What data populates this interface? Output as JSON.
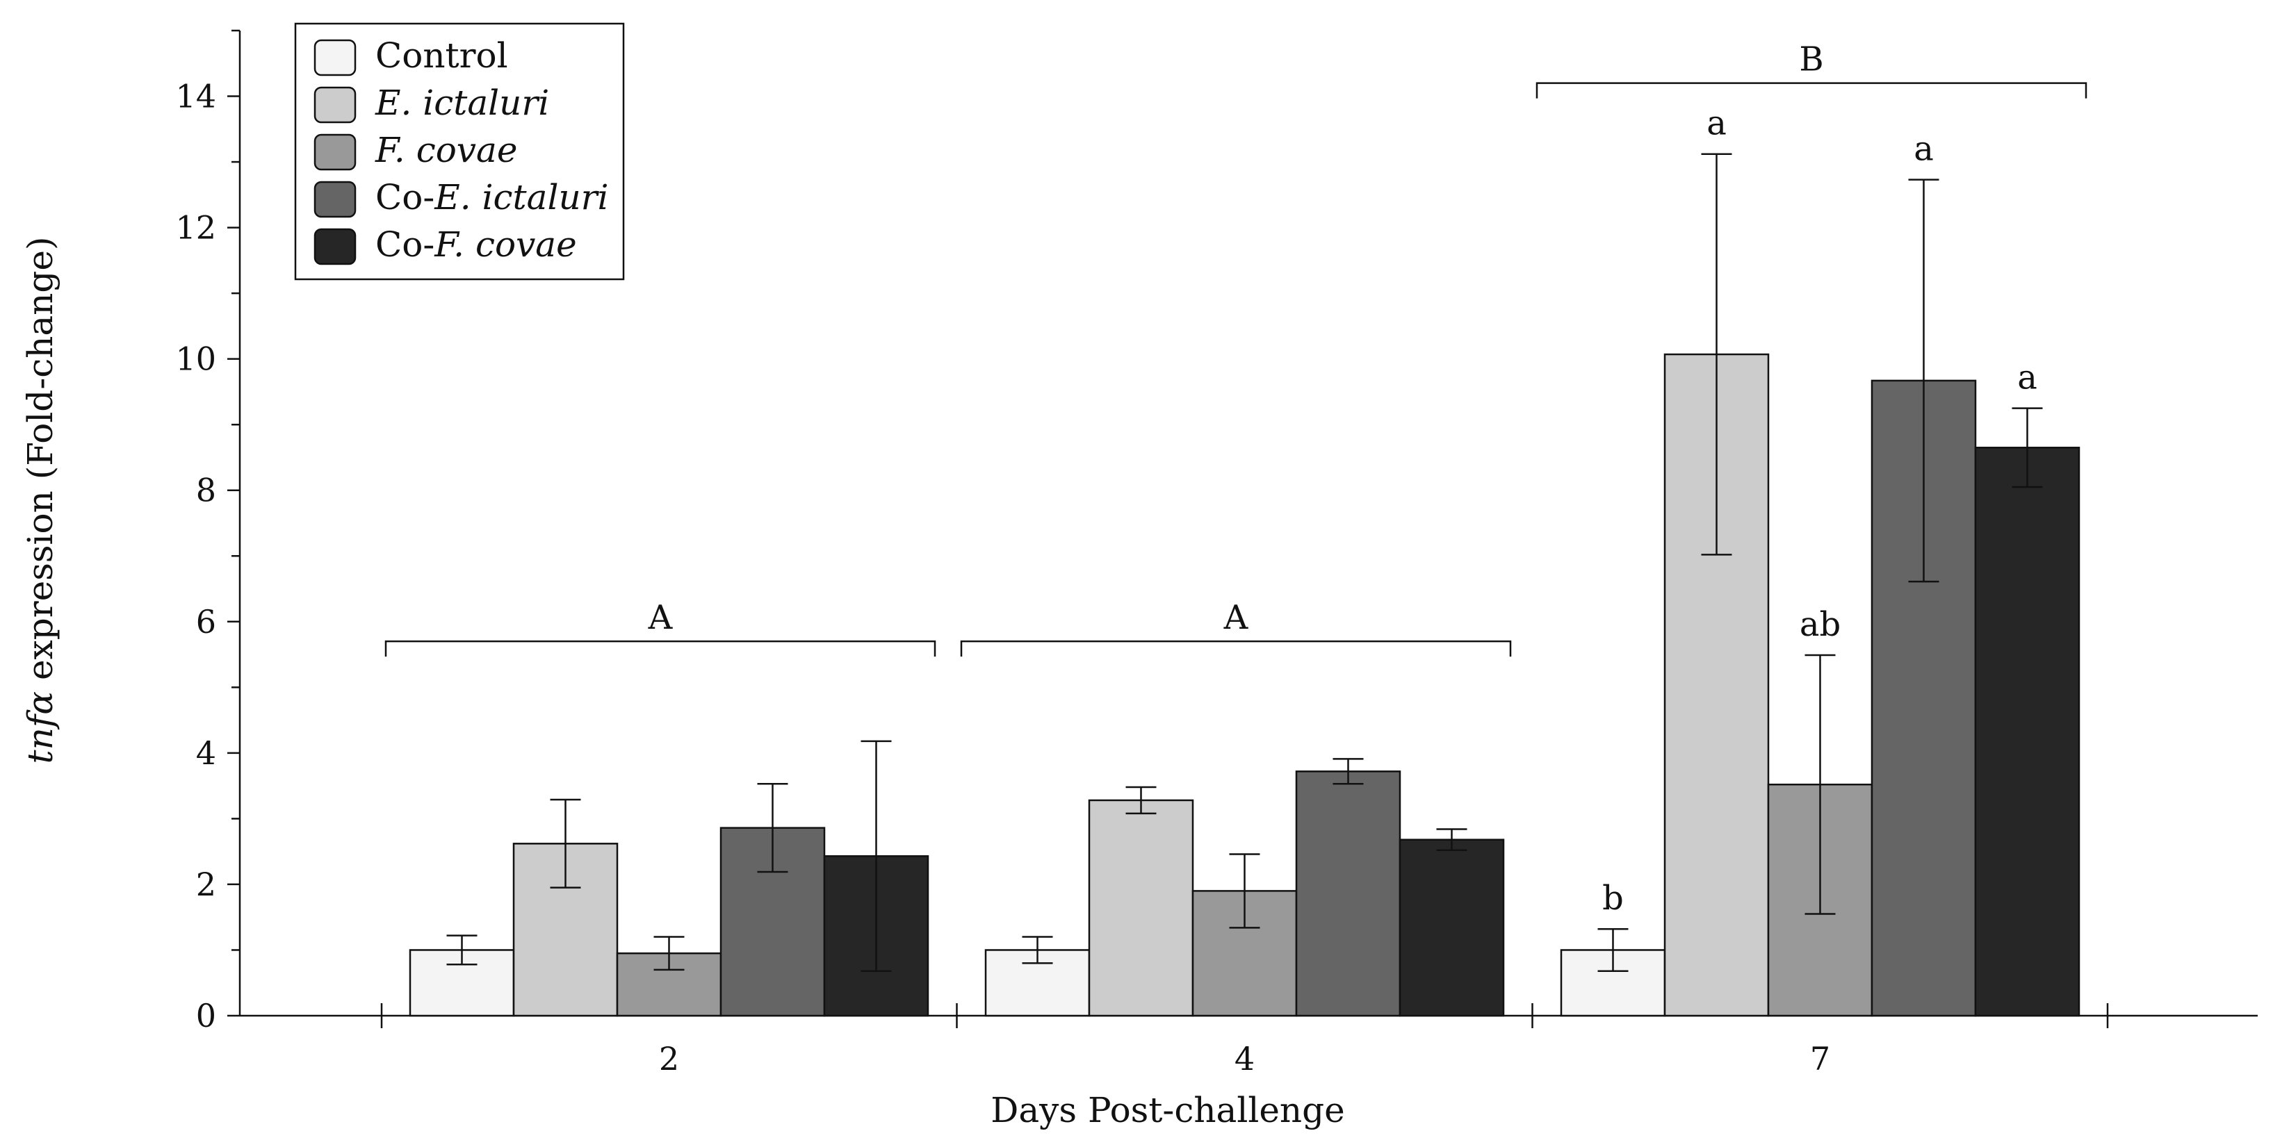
{
  "chart_data": {
    "type": "bar",
    "title": "",
    "xlabel": "Days Post-challenge",
    "ylabel_italic": "tnfα",
    "ylabel_rest": " expression (Fold-change)",
    "categories": [
      "2",
      "4",
      "7"
    ],
    "ylim": [
      0,
      15
    ],
    "yticks": [
      "0",
      "2",
      "4",
      "6",
      "8",
      "10",
      "12",
      "14"
    ],
    "series": [
      {
        "name": "Control",
        "prefix": "",
        "italic": "",
        "color": "#f4f4f4",
        "values": [
          1.0,
          1.0,
          1.0
        ],
        "errors": [
          0.22,
          0.2,
          0.32
        ]
      },
      {
        "name": "E. ictaluri",
        "prefix": "",
        "italic": "E. ictaluri",
        "color": "#cccccc",
        "values": [
          2.62,
          3.28,
          10.07
        ],
        "errors": [
          0.67,
          0.2,
          3.05
        ]
      },
      {
        "name": "F. covae",
        "prefix": "",
        "italic": "F. covae",
        "color": "#999999",
        "values": [
          0.95,
          1.9,
          3.52
        ],
        "errors": [
          0.25,
          0.56,
          1.97
        ]
      },
      {
        "name": "Co-E. ictaluri",
        "prefix": "Co-",
        "italic": "E. ictaluri",
        "color": "#656565",
        "values": [
          2.86,
          3.72,
          9.67
        ],
        "errors": [
          0.67,
          0.19,
          3.06
        ]
      },
      {
        "name": "Co-F. covae",
        "prefix": "Co-",
        "italic": "F. covae",
        "color": "#262626",
        "values": [
          2.43,
          2.68,
          8.65
        ],
        "errors": [
          1.75,
          0.16,
          0.6
        ]
      }
    ],
    "group_letters": [
      "A",
      "A",
      "B"
    ],
    "group_letter_levels": [
      5.7,
      5.7,
      14.2
    ],
    "bar_letters": [
      {
        "category": "7",
        "series": "Control",
        "text": "b"
      },
      {
        "category": "7",
        "series": "E. ictaluri",
        "text": "a"
      },
      {
        "category": "7",
        "series": "F. covae",
        "text": "ab"
      },
      {
        "category": "7",
        "series": "Co-E. ictaluri",
        "text": "a"
      },
      {
        "category": "7",
        "series": "Co-F. covae",
        "text": "a"
      }
    ],
    "legend_position": "top-left",
    "grid": false
  }
}
